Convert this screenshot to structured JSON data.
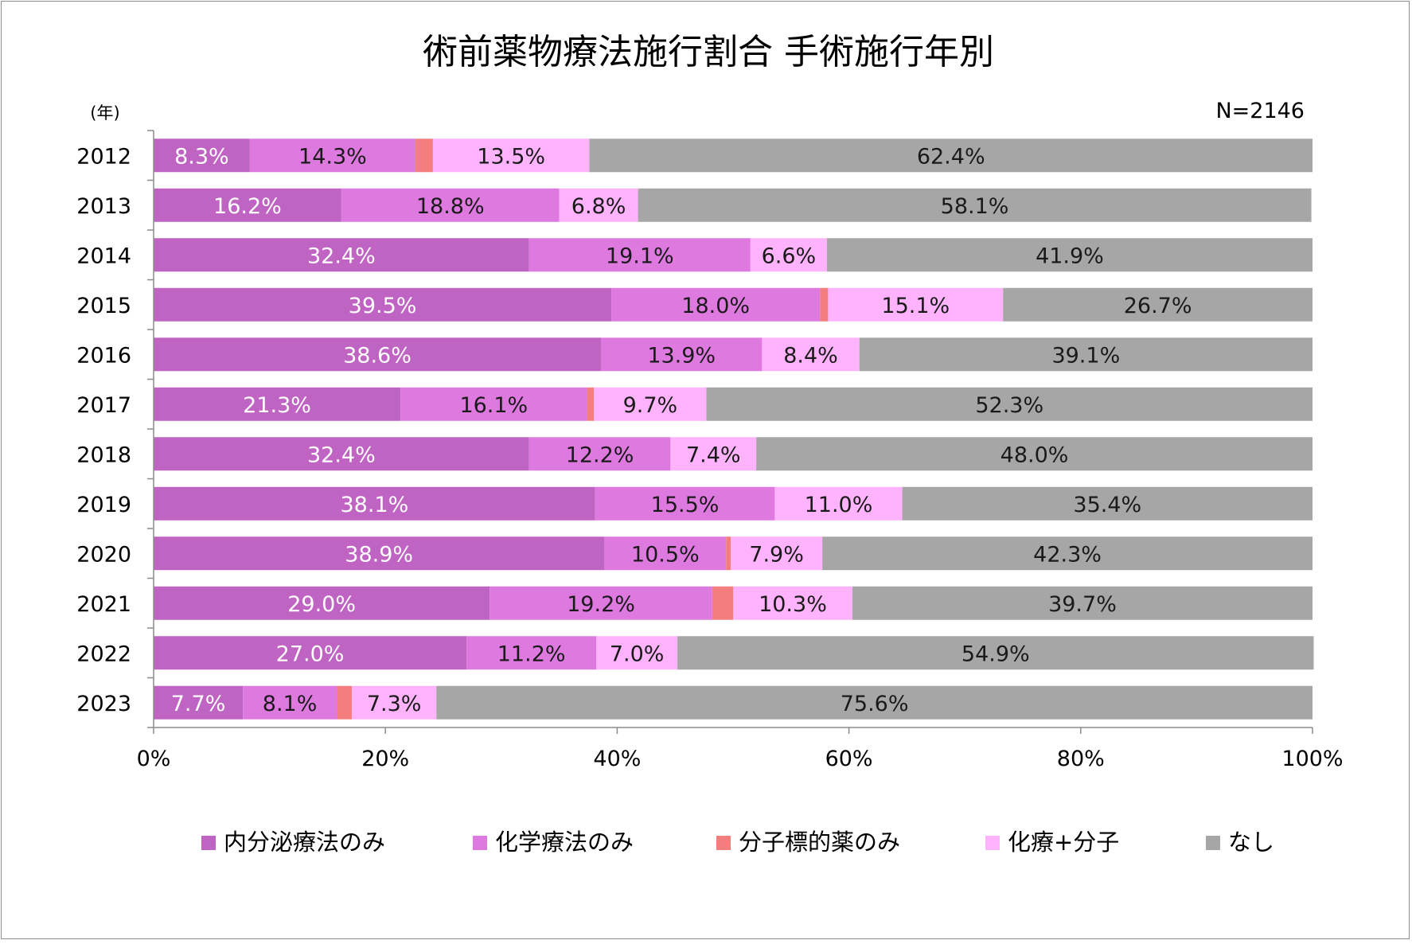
{
  "chart_data": {
    "type": "bar",
    "orientation": "horizontal",
    "stacked": true,
    "title": "術前薬物療法施行割合 手術施行年別",
    "ylabel": "(年)",
    "note": "N=2146",
    "xlim": [
      0,
      100
    ],
    "x_ticks": [
      "0%",
      "20%",
      "40%",
      "60%",
      "80%",
      "100%"
    ],
    "categories": [
      "2012",
      "2013",
      "2014",
      "2015",
      "2016",
      "2017",
      "2018",
      "2019",
      "2020",
      "2021",
      "2022",
      "2023"
    ],
    "series": [
      {
        "name": "内分泌療法のみ",
        "color": "#c064c3",
        "label_color": "#ffffff",
        "values": [
          8.3,
          16.2,
          32.4,
          39.5,
          38.6,
          21.3,
          32.4,
          38.1,
          38.9,
          29.0,
          27.0,
          7.7
        ]
      },
      {
        "name": "化学療法のみ",
        "color": "#de79e0",
        "label_color": "#1a1a1a",
        "values": [
          14.3,
          18.8,
          19.1,
          18.0,
          13.9,
          16.1,
          12.2,
          15.5,
          10.5,
          19.2,
          11.2,
          8.1
        ]
      },
      {
        "name": "分子標的薬のみ",
        "color": "#f47e7e",
        "label_color": "#1a1a1a",
        "values": [
          1.5,
          0.0,
          0.0,
          0.7,
          0.0,
          0.6,
          0.0,
          0.0,
          0.4,
          1.8,
          0.0,
          1.3
        ]
      },
      {
        "name": "化療+分子",
        "color": "#ffb3fc",
        "label_color": "#1a1a1a",
        "values": [
          13.5,
          6.8,
          6.6,
          15.1,
          8.4,
          9.7,
          7.4,
          11.0,
          7.9,
          10.3,
          7.0,
          7.3
        ]
      },
      {
        "name": "なし",
        "color": "#a6a6a6",
        "label_color": "#1a1a1a",
        "values": [
          62.4,
          58.1,
          41.9,
          26.7,
          39.1,
          52.3,
          48.0,
          35.4,
          42.3,
          39.7,
          54.9,
          75.6
        ]
      }
    ],
    "data_labels": [
      [
        "8.3%",
        "14.3%",
        "",
        "13.5%",
        "62.4%"
      ],
      [
        "16.2%",
        "18.8%",
        "",
        "6.8%",
        "58.1%"
      ],
      [
        "32.4%",
        "19.1%",
        "",
        "6.6%",
        "41.9%"
      ],
      [
        "39.5%",
        "18.0%",
        "",
        "15.1%",
        "26.7%"
      ],
      [
        "38.6%",
        "13.9%",
        "",
        "8.4%",
        "39.1%"
      ],
      [
        "21.3%",
        "16.1%",
        "",
        "9.7%",
        "52.3%"
      ],
      [
        "32.4%",
        "12.2%",
        "",
        "7.4%",
        "48.0%"
      ],
      [
        "38.1%",
        "15.5%",
        "",
        "11.0%",
        "35.4%"
      ],
      [
        "38.9%",
        "10.5%",
        "",
        "7.9%",
        "42.3%"
      ],
      [
        "29.0%",
        "19.2%",
        "",
        "10.3%",
        "39.7%"
      ],
      [
        "27.0%",
        "11.2%",
        "",
        "7.0%",
        "54.9%"
      ],
      [
        "7.7%",
        "8.1%",
        "",
        "7.3%",
        "75.6%"
      ]
    ],
    "legend_position": "bottom",
    "grid": false
  }
}
